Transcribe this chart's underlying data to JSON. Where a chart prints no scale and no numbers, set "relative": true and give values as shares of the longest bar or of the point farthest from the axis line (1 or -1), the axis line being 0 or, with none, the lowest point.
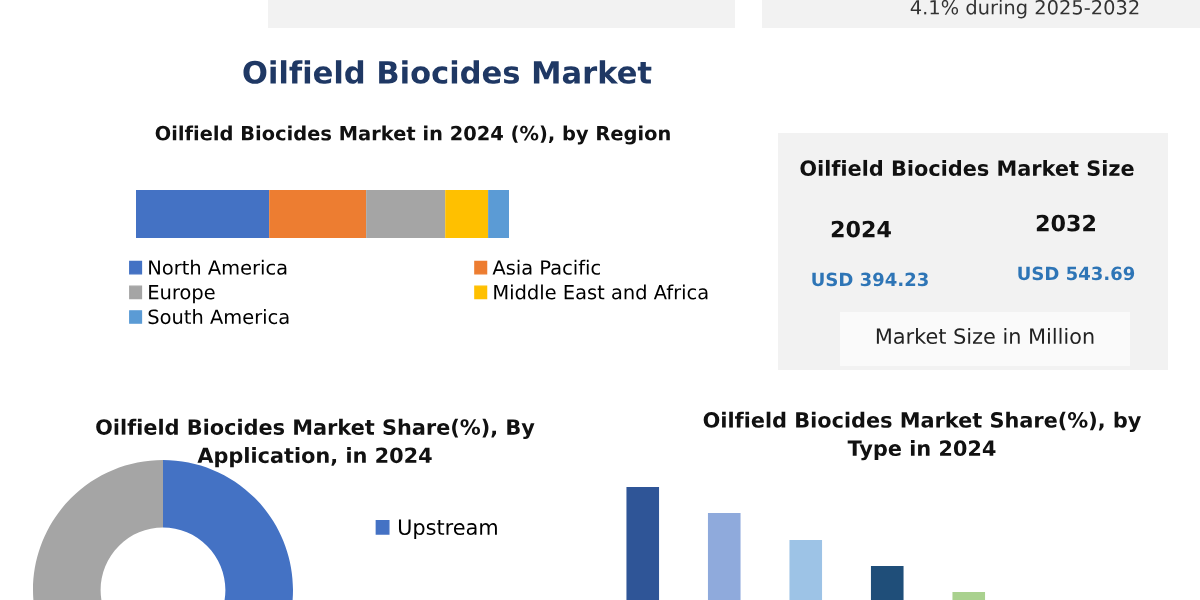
{
  "chart_data": [
    {
      "type": "bar",
      "title": "Oilfield Biocides Market",
      "subtitle": "Oilfield Biocides Market in 2024 (%), by Region",
      "orientation": "horizontal",
      "stacked": true,
      "relative": true,
      "categories": [
        null
      ],
      "legend": "bottom",
      "series": [
        {
          "name": "North America",
          "color": "#4472c4",
          "values": [
            0.357
          ]
        },
        {
          "name": "Asia Pacific",
          "color": "#ed7d31",
          "values": [
            0.26
          ]
        },
        {
          "name": "Europe",
          "color": "#a5a5a5",
          "values": [
            0.212
          ]
        },
        {
          "name": "Middle East and Africa",
          "color": "#ffc000",
          "values": [
            0.115
          ]
        },
        {
          "name": "South America",
          "color": "#5b9bd5",
          "values": [
            0.056
          ]
        }
      ]
    },
    {
      "type": "other",
      "title": "Oilfield Biocides Market Size",
      "annotations": [
        "2024",
        "2032",
        "USD 394.23",
        "USD 543.69",
        "Market Size in Million",
        "4.1% during 2025-2032"
      ]
    },
    {
      "type": "donut",
      "title": "Oilfield Biocides Market Share(%), By Application, in 2024",
      "categories": [
        "Upstream",
        null,
        null
      ],
      "values": [
        50,
        null,
        50
      ],
      "colors": [
        "#4472c4",
        "#ed7d31",
        "#a5a5a5"
      ],
      "legend": "right"
    },
    {
      "type": "bar",
      "title": "Oilfield Biocides Market Share(%), by Type in 2024",
      "relative": true,
      "categories": [
        null,
        null,
        null,
        null,
        null
      ],
      "values": [
        1,
        0.77,
        0.53,
        0.3,
        0.07
      ],
      "colors": [
        "#2f5597",
        "#8faadc",
        "#9dc3e6",
        "#1f4e79",
        "#a9d18e"
      ]
    }
  ]
}
